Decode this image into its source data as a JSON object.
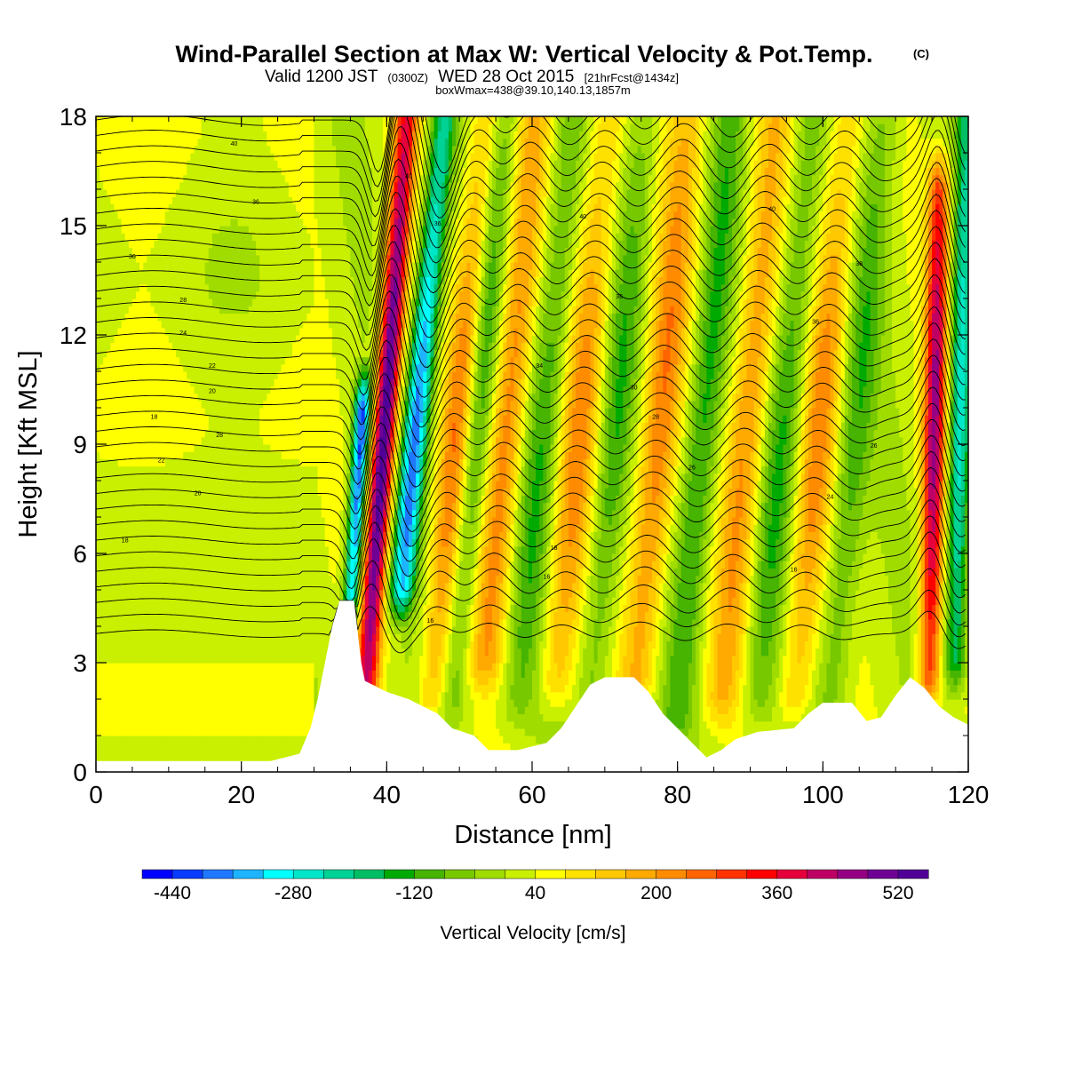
{
  "title": {
    "main": "Wind-Parallel Section at Max W: Vertical Velocity & Pot.Temp.",
    "copyright": "(C)",
    "valid_prefix": "Valid 1200 JST",
    "valid_z": "(0300Z)",
    "valid_date": "WED 28 Oct 2015",
    "forecast": "[21hrFcst@1434z]",
    "box": "boxWmax=438@39.10,140.13,1857m"
  },
  "chart_data": {
    "type": "heatmap",
    "xlabel": "Distance [nm]",
    "ylabel": "Height [Kft MSL]",
    "xlim": [
      0,
      120
    ],
    "ylim": [
      0,
      18
    ],
    "x_ticks": [
      "0",
      "20",
      "40",
      "60",
      "80",
      "100",
      "120"
    ],
    "y_ticks": [
      "0",
      "3",
      "6",
      "9",
      "12",
      "15",
      "18"
    ],
    "colorbar": {
      "label": "Vertical Velocity [cm/s]",
      "tick_labels": [
        "-440",
        "-280",
        "-120",
        "40",
        "200",
        "360",
        "520"
      ],
      "tick_values": [
        -440,
        -280,
        -120,
        40,
        200,
        360,
        520
      ],
      "range": [
        -480,
        560
      ],
      "colors": [
        "#0000ff",
        "#0a3cff",
        "#1f78ff",
        "#1eb4ff",
        "#00ffff",
        "#00e6c8",
        "#00d296",
        "#00be64",
        "#00aa00",
        "#46b400",
        "#78c800",
        "#a0dc00",
        "#c8f000",
        "#ffff00",
        "#ffe100",
        "#ffc800",
        "#ffaa00",
        "#ff8c00",
        "#ff6400",
        "#ff3200",
        "#ff0000",
        "#e6003c",
        "#be0064",
        "#960082",
        "#6e0096",
        "#500096"
      ]
    },
    "field_shown": "Vertical Velocity",
    "contour_field": "Pot.Temp.",
    "terrain": [
      [
        0,
        0.3
      ],
      [
        8,
        0.3
      ],
      [
        16,
        0.3
      ],
      [
        24,
        0.3
      ],
      [
        28,
        0.5
      ],
      [
        29.5,
        1.2
      ],
      [
        30.5,
        2.0
      ],
      [
        31.5,
        3.0
      ],
      [
        32.5,
        4.0
      ],
      [
        33.5,
        4.7
      ],
      [
        35.5,
        4.7
      ],
      [
        36.5,
        3.0
      ],
      [
        37,
        2.5
      ],
      [
        40,
        2.2
      ],
      [
        43,
        2.0
      ],
      [
        47,
        1.6
      ],
      [
        49,
        1.2
      ],
      [
        52,
        1.0
      ],
      [
        54,
        0.6
      ],
      [
        58,
        0.6
      ],
      [
        62,
        0.8
      ],
      [
        64,
        1.2
      ],
      [
        66,
        1.8
      ],
      [
        68,
        2.4
      ],
      [
        70,
        2.6
      ],
      [
        74,
        2.6
      ],
      [
        76,
        2.2
      ],
      [
        78,
        1.6
      ],
      [
        80,
        1.2
      ],
      [
        82,
        0.8
      ],
      [
        84,
        0.4
      ],
      [
        86,
        0.6
      ],
      [
        88,
        0.9
      ],
      [
        91,
        1.1
      ],
      [
        96,
        1.2
      ],
      [
        98,
        1.6
      ],
      [
        100,
        1.9
      ],
      [
        104,
        1.9
      ],
      [
        106,
        1.4
      ],
      [
        108,
        1.5
      ],
      [
        110,
        2.1
      ],
      [
        112,
        2.6
      ],
      [
        114,
        2.3
      ],
      [
        116,
        1.8
      ],
      [
        118,
        1.5
      ],
      [
        120,
        1.3
      ]
    ],
    "wave_features": [
      {
        "center": 38.5,
        "amp": 560,
        "width": 1.6,
        "tilt": 0.35,
        "zbot": 2.5,
        "ztop": 18
      },
      {
        "center": 35.5,
        "amp": -440,
        "width": 1.1,
        "tilt": 0.3,
        "zbot": 4.5,
        "ztop": 10
      },
      {
        "center": 42.5,
        "amp": -400,
        "width": 1.7,
        "tilt": 0.45,
        "zbot": 5.0,
        "ztop": 18
      },
      {
        "center": 48.0,
        "amp": 200,
        "width": 2.0,
        "tilt": 0.45,
        "zbot": 2.0,
        "ztop": 18
      },
      {
        "center": 51.0,
        "amp": -130,
        "width": 1.8,
        "tilt": 0.45,
        "zbot": 2.0,
        "ztop": 18
      },
      {
        "center": 55.0,
        "amp": 220,
        "width": 2.3,
        "tilt": 0.45,
        "zbot": 3.0,
        "ztop": 18
      },
      {
        "center": 60.0,
        "amp": -140,
        "width": 2.3,
        "tilt": 0.45,
        "zbot": 2.0,
        "ztop": 18
      },
      {
        "center": 65.0,
        "amp": 190,
        "width": 2.5,
        "tilt": 0.45,
        "zbot": 2.5,
        "ztop": 18
      },
      {
        "center": 70.0,
        "amp": -130,
        "width": 2.2,
        "tilt": 0.45,
        "zbot": 2.5,
        "ztop": 18
      },
      {
        "center": 76.0,
        "amp": 220,
        "width": 2.6,
        "tilt": 0.45,
        "zbot": 2.5,
        "ztop": 18
      },
      {
        "center": 82.0,
        "amp": -170,
        "width": 2.3,
        "tilt": 0.45,
        "zbot": 1.5,
        "ztop": 18
      },
      {
        "center": 88.0,
        "amp": 200,
        "width": 2.5,
        "tilt": 0.45,
        "zbot": 2.0,
        "ztop": 18
      },
      {
        "center": 93.0,
        "amp": -140,
        "width": 2.3,
        "tilt": 0.45,
        "zbot": 2.0,
        "ztop": 18
      },
      {
        "center": 98.0,
        "amp": 190,
        "width": 2.4,
        "tilt": 0.45,
        "zbot": 2.0,
        "ztop": 18
      },
      {
        "center": 103.0,
        "amp": -130,
        "width": 2.3,
        "tilt": 0.45,
        "zbot": 2.0,
        "ztop": 18
      },
      {
        "center": 115.0,
        "amp": 420,
        "width": 1.5,
        "tilt": 0.1,
        "zbot": 2.5,
        "ztop": 16
      },
      {
        "center": 118.5,
        "amp": -300,
        "width": 1.5,
        "tilt": 0.1,
        "zbot": 3.0,
        "ztop": 18
      }
    ],
    "theta_contours": {
      "count": 34,
      "bottom_height": 3.8,
      "top_height": 17.9,
      "label_values": [
        "16",
        "18",
        "20",
        "22",
        "24",
        "26",
        "28",
        "30",
        "32",
        "34",
        "36",
        "38",
        "40"
      ]
    }
  }
}
